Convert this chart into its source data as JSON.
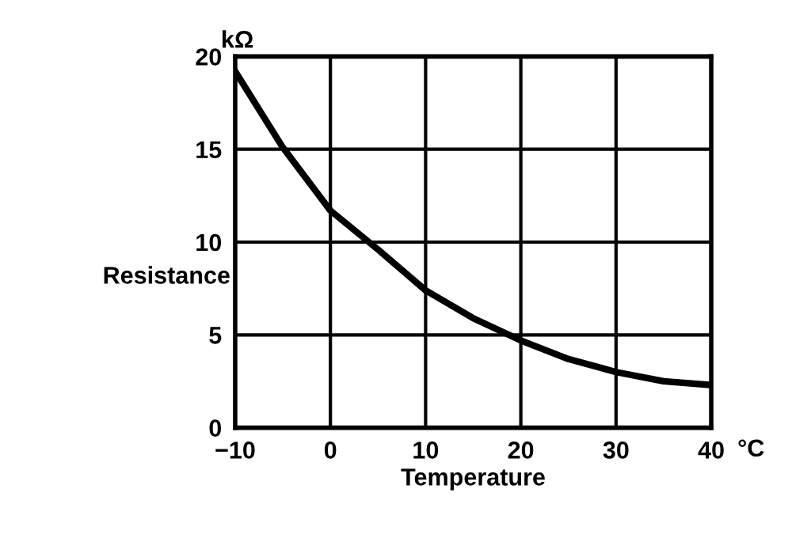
{
  "chart_data": {
    "type": "line",
    "xlabel": "Temperature",
    "ylabel": "Resistance",
    "annotations": [
      "kΩ",
      "°C"
    ],
    "x": [
      -10,
      -5,
      0,
      5,
      10,
      15,
      20,
      25,
      30,
      35,
      40
    ],
    "series": [
      {
        "color": "#000000",
        "values": [
          19.2,
          15.1,
          11.7,
          9.6,
          7.4,
          5.9,
          4.7,
          3.7,
          3.0,
          2.5,
          2.3
        ]
      }
    ],
    "xlim": [
      -10,
      40
    ],
    "ylim": [
      0,
      20
    ],
    "xticks": [
      {
        "value": -10,
        "label": "−10"
      },
      0,
      10,
      20,
      30,
      40
    ],
    "yticks": [
      0,
      5,
      10,
      15,
      20
    ],
    "grid": true,
    "marker": "none",
    "line_style": "solid"
  }
}
